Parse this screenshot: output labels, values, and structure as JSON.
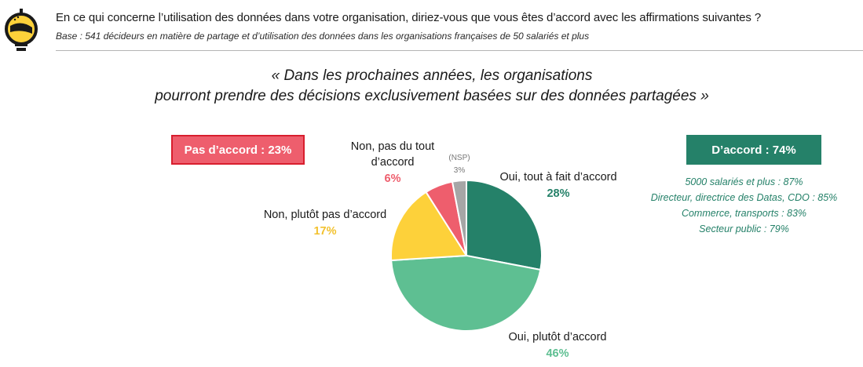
{
  "header": {
    "question": "En ce qui concerne l’utilisation des données dans votre organisation, diriez-vous que vous êtes d’accord avec les affirmations suivantes ?",
    "base": "Base : 541 décideurs en matière de partage et d’utilisation des données dans les organisations françaises de 50 salariés et plus"
  },
  "quote": {
    "line1": "« Dans les prochaines années, les organisations",
    "line2": "pourront prendre des décisions exclusivement basées sur des données partagées »"
  },
  "summary": {
    "disagree": "Pas d’accord : 23%",
    "agree": "D’accord : 74%",
    "agree_details": [
      "5000 salariés et plus : 87%",
      "Directeur, directrice des Datas, CDO : 85%",
      "Commerce, transports : 83%",
      "Secteur public : 79%"
    ]
  },
  "labels": {
    "tout_a_fait": {
      "line1": "Oui, tout à fait d’accord",
      "value": "28%"
    },
    "plutot": {
      "line1": "Oui, plutôt d’accord",
      "value": "46%"
    },
    "plutot_pas": {
      "line1": "Non, plutôt pas d’accord",
      "value": "17%"
    },
    "pas_du_tout": {
      "line1": "Non, pas du tout",
      "line2": "d’accord",
      "value": "6%"
    },
    "nsp": {
      "line1": "(NSP)",
      "value": "3%"
    }
  },
  "chart_data": {
    "type": "pie",
    "slices": [
      {
        "label": "Oui, tout à fait d’accord",
        "value": 28,
        "color": "#258169"
      },
      {
        "label": "Oui, plutôt d’accord",
        "value": 46,
        "color": "#5ebf92"
      },
      {
        "label": "Non, plutôt pas d’accord",
        "value": 17,
        "color": "#fdd13a"
      },
      {
        "label": "Non, pas du tout d’accord",
        "value": 6,
        "color": "#ee5e6d"
      },
      {
        "label": "(NSP)",
        "value": 3,
        "color": "#a6a6a6"
      }
    ]
  },
  "colors": {
    "agree_dark": "#258169",
    "agree_light": "#5ebf92",
    "neutral_yellow": "#fdd13a",
    "disagree_red": "#ee5e6d",
    "nsp_grey": "#a6a6a6",
    "disagree_pill_border": "#d81e2e"
  },
  "logo": {
    "icon": "lightbulb-logo-icon"
  }
}
